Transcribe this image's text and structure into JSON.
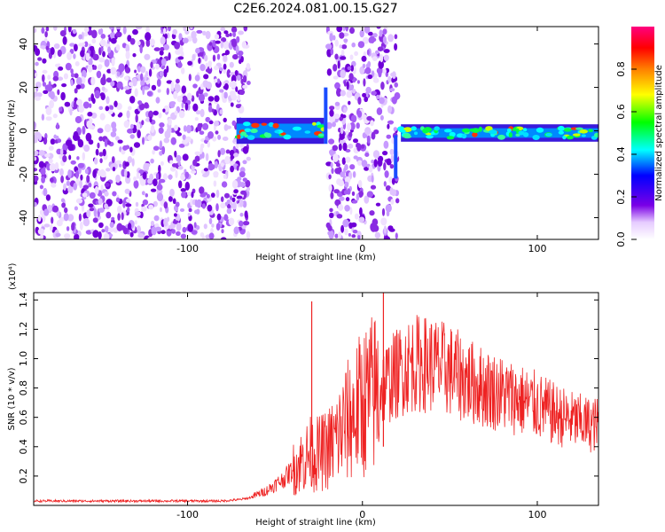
{
  "chart_data": [
    {
      "type": "heatmap",
      "title": "C2E6.2024.081.00.15.G27",
      "xlabel": "Height of straight line (km)",
      "ylabel": "Frequency (Hz)",
      "xlim": [
        -188,
        135
      ],
      "ylim": [
        -50,
        48
      ],
      "x_ticks": [
        "-100",
        "0",
        "100"
      ],
      "y_ticks": [
        "40",
        "20",
        "0",
        "-20",
        "-40"
      ],
      "colorbar": {
        "label": "Normalized spectral amplitude",
        "range": [
          0,
          1
        ],
        "ticks": [
          "0.0",
          "0.2",
          "0.4",
          "0.6",
          "0.8"
        ],
        "colormap": [
          "#ffffff",
          "#7a00e6",
          "#0000ff",
          "#00ffff",
          "#00ff00",
          "#ffff00",
          "#ff8000",
          "#ff0000",
          "#ff0080"
        ]
      },
      "regions": [
        {
          "desc": "noise",
          "x": [
            -188,
            -65
          ]
        },
        {
          "desc": "signal_band",
          "x": [
            -72,
            -22
          ],
          "freq_center": 0,
          "freq_halfwidth": 6
        },
        {
          "desc": "noise",
          "x": [
            -20,
            20
          ]
        },
        {
          "desc": "signal_band",
          "x": [
            22,
            135
          ],
          "freq_center": -1,
          "freq_halfwidth": 4
        }
      ],
      "grid": false
    },
    {
      "type": "line",
      "xlabel": "Height of straight line (km)",
      "ylabel": "SNR (10 * v/v)",
      "multiplier": "(x10⁴)",
      "xlim": [
        -188,
        135
      ],
      "ylim": [
        0,
        1.45
      ],
      "x_ticks": [
        "-100",
        "0",
        "100"
      ],
      "y_ticks": [
        "1.4",
        "1.2",
        "1.0",
        "0.8",
        "0.6",
        "0.4",
        "0.2"
      ],
      "color": "#ee2222",
      "series": [
        {
          "x": [
            -188,
            -160,
            -130,
            -100,
            -80,
            -70,
            -65,
            -55,
            -45,
            -35,
            -30,
            -25,
            -20,
            -15,
            -10,
            -5,
            0,
            5,
            10,
            15,
            20,
            25,
            30,
            40,
            50,
            60,
            70,
            80,
            90,
            100,
            110,
            120,
            130,
            135
          ],
          "values": [
            0.03,
            0.03,
            0.03,
            0.03,
            0.03,
            0.04,
            0.05,
            0.1,
            0.18,
            0.3,
            0.35,
            0.35,
            0.38,
            0.45,
            0.55,
            0.62,
            0.7,
            0.75,
            0.8,
            0.85,
            0.9,
            0.95,
            0.97,
            0.96,
            0.92,
            0.85,
            0.8,
            0.76,
            0.72,
            0.68,
            0.62,
            0.58,
            0.55,
            0.55
          ]
        }
      ],
      "annotations": [
        {
          "x": -29,
          "y": 1.39
        },
        {
          "x": 12,
          "y": 1.45
        }
      ],
      "grid": false
    }
  ]
}
